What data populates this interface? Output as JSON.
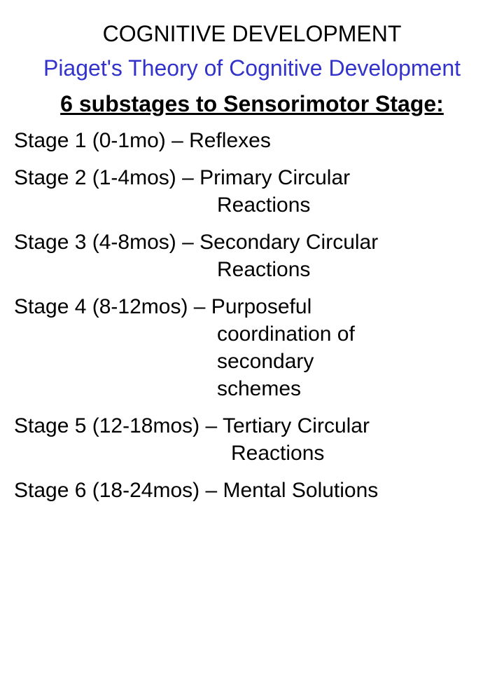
{
  "colors": {
    "text": "#000000",
    "subtitle": "#3333cc",
    "background": "#ffffff"
  },
  "fonts": {
    "family": "Arial",
    "title_size": 32,
    "body_size": 30
  },
  "title": "COGNITIVE DEVELOPMENT",
  "subtitle": "Piaget's Theory of Cognitive Development",
  "heading": "6 substages to Sensorimotor Stage:",
  "stages": {
    "s1_line1": "Stage 1 (0-1mo) – Reflexes",
    "s2_line1": "Stage 2 (1-4mos) – Primary Circular",
    "s2_line2": "Reactions",
    "s3_line1": "Stage 3 (4-8mos) – Secondary Circular",
    "s3_line2": "Reactions",
    "s4_line1": "Stage 4 (8-12mos) – Purposeful",
    "s4_line2": "coordination of",
    "s4_line3": "secondary",
    "s4_line4": "schemes",
    "s5_line1": "Stage 5 (12-18mos) – Tertiary Circular",
    "s5_line2": "Reactions",
    "s6_line1": "Stage 6 (18-24mos) – Mental Solutions"
  }
}
